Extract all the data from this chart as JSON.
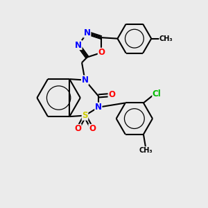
{
  "bg_color": "#ebebeb",
  "bond_color": "#000000",
  "atom_colors": {
    "N": "#0000ff",
    "O": "#ff0000",
    "S": "#cccc00",
    "Cl": "#00bb00",
    "C": "#000000"
  },
  "font_size": 8.5,
  "lw": 1.5
}
